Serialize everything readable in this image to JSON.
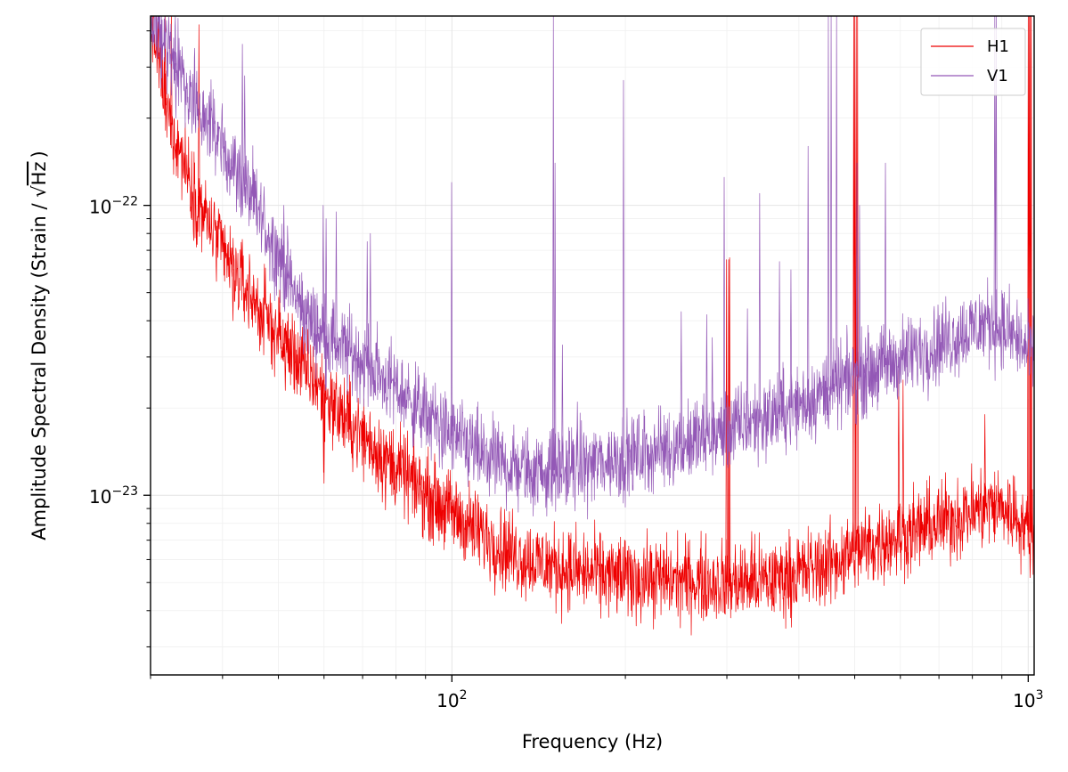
{
  "chart_data": {
    "type": "line",
    "title": "",
    "xlabel": "Frequency (Hz)",
    "ylabel_prefix": "Amplitude Spectral Density (Strain / ",
    "ylabel_radical": "√",
    "ylabel_radicand": "Hz",
    "ylabel_suffix": ")",
    "xscale": "log",
    "yscale": "log",
    "xlim": [
      30,
      1024
    ],
    "ylim": [
      2.4e-24,
      4.5e-22
    ],
    "grid": true,
    "legend_position": "top-right",
    "x_ticks": [
      {
        "value": 100,
        "base": "10",
        "exp": "2"
      },
      {
        "value": 1000,
        "base": "10",
        "exp": "3"
      }
    ],
    "y_ticks": [
      {
        "value": 1e-23,
        "base": "10",
        "exp": "−23"
      },
      {
        "value": 1e-22,
        "base": "10",
        "exp": "−22"
      }
    ],
    "series": [
      {
        "name": "H1",
        "color": "#ee0000",
        "baseline": [
          [
            30,
            4.4e-22
          ],
          [
            31,
            3.2e-22
          ],
          [
            32,
            2.1e-22
          ],
          [
            34,
            1.5e-22
          ],
          [
            36,
            1.05e-22
          ],
          [
            38,
            8.5e-23
          ],
          [
            40,
            6.9e-23
          ],
          [
            42,
            5.9e-23
          ],
          [
            44,
            5.1e-23
          ],
          [
            46,
            4.5e-23
          ],
          [
            48,
            4e-23
          ],
          [
            50,
            3.6e-23
          ],
          [
            55,
            2.8e-23
          ],
          [
            60,
            2.25e-23
          ],
          [
            65,
            1.85e-23
          ],
          [
            70,
            1.6e-23
          ],
          [
            75,
            1.4e-23
          ],
          [
            80,
            1.25e-23
          ],
          [
            85,
            1.12e-23
          ],
          [
            90,
            1.02e-23
          ],
          [
            95,
            9.3e-24
          ],
          [
            100,
            8.7e-24
          ],
          [
            110,
            7.6e-24
          ],
          [
            120,
            6.8e-24
          ],
          [
            130,
            6.2e-24
          ],
          [
            140,
            5.9e-24
          ],
          [
            150,
            5.7e-24
          ],
          [
            170,
            5.4e-24
          ],
          [
            200,
            5.2e-24
          ],
          [
            250,
            5.1e-24
          ],
          [
            300,
            5e-24
          ],
          [
            350,
            5.05e-24
          ],
          [
            400,
            5.4e-24
          ],
          [
            450,
            5.8e-24
          ],
          [
            500,
            6.4e-24
          ],
          [
            550,
            6.9e-24
          ],
          [
            600,
            7.3e-24
          ],
          [
            700,
            8e-24
          ],
          [
            800,
            8.8e-24
          ],
          [
            850,
            9.2e-24
          ],
          [
            900,
            9.1e-24
          ],
          [
            950,
            8.5e-24
          ],
          [
            1000,
            7.6e-24
          ],
          [
            1024,
            7.2e-24
          ]
        ],
        "lines": [
          [
            31,
            5e-22
          ],
          [
            31.8,
            4.6e-22
          ],
          [
            32.6,
            4.6e-22
          ],
          [
            36.4,
            4.2e-22
          ],
          [
            41.7,
            4e-23
          ],
          [
            45.3,
            5.6e-23
          ],
          [
            46.6,
            3.3e-23
          ],
          [
            51.4,
            2.3e-23
          ],
          [
            59.9,
            1.2e-23
          ],
          [
            76.7,
            8.9e-24
          ],
          [
            60.0,
            1.1e-23
          ],
          [
            88.9,
            8.5e-24
          ],
          [
            299.6,
            6.5e-23
          ],
          [
            302.2,
            6.5e-23
          ],
          [
            303.3,
            6.6e-23
          ],
          [
            331.3,
            7.5e-24
          ],
          [
            497.9,
            4.5e-22
          ],
          [
            500.2,
            4.5e-22
          ],
          [
            503.0,
            4.5e-22
          ],
          [
            505.7,
            4.5e-22
          ],
          [
            596.0,
            2.7e-23
          ],
          [
            606.5,
            2.5e-23
          ],
          [
            841.0,
            1.9e-23
          ],
          [
            1000.0,
            4.5e-22
          ],
          [
            1004.0,
            4.5e-22
          ],
          [
            1009.0,
            4.5e-22
          ],
          [
            1012.0,
            4.5e-22
          ]
        ]
      },
      {
        "name": "V1",
        "color": "#9358b6",
        "baseline": [
          [
            30,
            4.2e-22
          ],
          [
            32,
            3.6e-22
          ],
          [
            34,
            2.8e-22
          ],
          [
            36,
            2.3e-22
          ],
          [
            38,
            1.9e-22
          ],
          [
            40,
            1.6e-22
          ],
          [
            42,
            1.35e-22
          ],
          [
            44,
            1.15e-22
          ],
          [
            46,
            9.5e-23
          ],
          [
            48,
            8e-23
          ],
          [
            50,
            6.8e-23
          ],
          [
            52,
            5.6e-23
          ],
          [
            54,
            4.7e-23
          ],
          [
            56,
            4.1e-23
          ],
          [
            60,
            3.6e-23
          ],
          [
            65,
            3.2e-23
          ],
          [
            70,
            2.9e-23
          ],
          [
            75,
            2.6e-23
          ],
          [
            80,
            2.35e-23
          ],
          [
            85,
            2.1e-23
          ],
          [
            90,
            1.9e-23
          ],
          [
            95,
            1.75e-23
          ],
          [
            100,
            1.6e-23
          ],
          [
            110,
            1.4e-23
          ],
          [
            120,
            1.3e-23
          ],
          [
            130,
            1.24e-23
          ],
          [
            140,
            1.2e-23
          ],
          [
            150,
            1.22e-23
          ],
          [
            170,
            1.27e-23
          ],
          [
            200,
            1.35e-23
          ],
          [
            250,
            1.5e-23
          ],
          [
            300,
            1.68e-23
          ],
          [
            350,
            1.86e-23
          ],
          [
            400,
            2.05e-23
          ],
          [
            450,
            2.3e-23
          ],
          [
            500,
            2.55e-23
          ],
          [
            550,
            2.75e-23
          ],
          [
            600,
            2.95e-23
          ],
          [
            700,
            3.35e-23
          ],
          [
            800,
            3.75e-23
          ],
          [
            850,
            3.95e-23
          ],
          [
            900,
            3.8e-23
          ],
          [
            950,
            3.5e-23
          ],
          [
            1000,
            3.1e-23
          ],
          [
            1024,
            2.95e-23
          ]
        ],
        "lines": [
          [
            32.6,
            2.4e-22
          ],
          [
            33.2,
            2e-22
          ],
          [
            43.3,
            3.6e-22
          ],
          [
            43.7,
            2.8e-22
          ],
          [
            51.1,
            1e-22
          ],
          [
            52,
            6e-23
          ],
          [
            55.9,
            4.3e-23
          ],
          [
            58.7,
            3.8e-23
          ],
          [
            59.8,
            1e-22
          ],
          [
            60.5,
            9e-23
          ],
          [
            63.0,
            9.5e-23
          ],
          [
            71.3,
            7.5e-23
          ],
          [
            72.2,
            8e-23
          ],
          [
            84.5,
            2.3e-23
          ],
          [
            99.9,
            1.2e-22
          ],
          [
            108.5,
            1.9e-23
          ],
          [
            150.0,
            4.5e-22
          ],
          [
            151.0,
            1.4e-22
          ],
          [
            155.5,
            3.3e-23
          ],
          [
            165.1,
            2.1e-23
          ],
          [
            198.5,
            2.7e-22
          ],
          [
            250,
            4.3e-23
          ],
          [
            276.8,
            4.2e-23
          ],
          [
            283,
            3.5e-23
          ],
          [
            296.8,
            1.25e-22
          ],
          [
            325.7,
            4.4e-23
          ],
          [
            342,
            1.1e-22
          ],
          [
            370.2,
            6.4e-23
          ],
          [
            387.5,
            6e-23
          ],
          [
            415,
            1.6e-22
          ],
          [
            450.0,
            4.5e-22
          ],
          [
            455.0,
            4.5e-22
          ],
          [
            465.0,
            4.5e-22
          ],
          [
            504.5,
            1.4e-22
          ],
          [
            509.7,
            1e-22
          ],
          [
            522,
            3.5e-23
          ],
          [
            565.3,
            1.4e-22
          ],
          [
            875,
            4.5e-22
          ],
          [
            880,
            4.5e-22
          ]
        ]
      }
    ]
  }
}
